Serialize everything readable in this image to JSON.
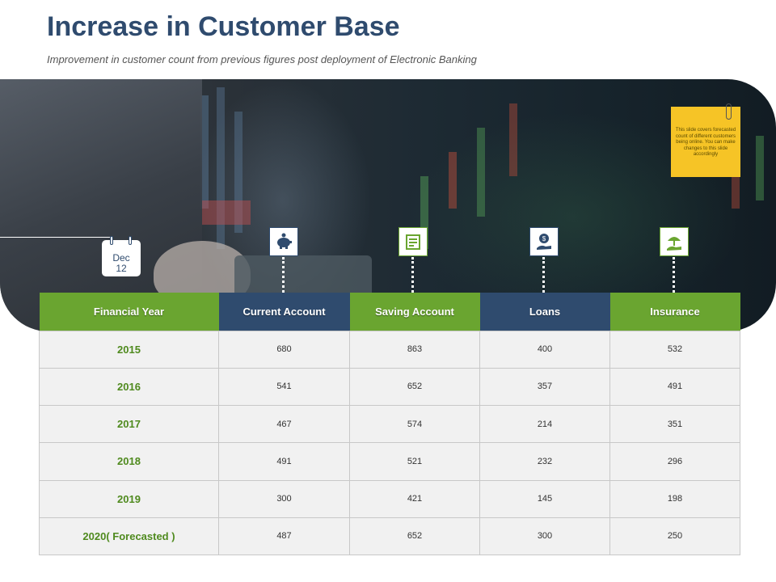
{
  "header": {
    "title": "Increase in Customer Base",
    "subtitle": "Improvement in customer count from previous figures post deployment of Electronic Banking"
  },
  "note": {
    "text": "This slide covers forecasted count of different customers being online. You can make changes to this slide accordingly"
  },
  "calendar": {
    "month": "Dec",
    "day": "12"
  },
  "icons": {
    "current_account": "piggy-bank-icon",
    "saving_account": "savings-ledger-icon",
    "loans": "money-hand-icon",
    "insurance": "umbrella-hand-icon"
  },
  "colors": {
    "green": "#6aa530",
    "blue": "#2f4b6e",
    "note": "#f6c426"
  },
  "table": {
    "headers": [
      "Financial Year",
      "Current Account",
      "Saving Account",
      "Loans",
      "Insurance"
    ],
    "rows": [
      [
        "2015",
        "680",
        "863",
        "400",
        "532"
      ],
      [
        "2016",
        "541",
        "652",
        "357",
        "491"
      ],
      [
        "2017",
        "467",
        "574",
        "214",
        "351"
      ],
      [
        "2018",
        "491",
        "521",
        "232",
        "296"
      ],
      [
        "2019",
        "300",
        "421",
        "145",
        "198"
      ],
      [
        "2020( Forecasted )",
        "487",
        "652",
        "300",
        "250"
      ]
    ]
  }
}
